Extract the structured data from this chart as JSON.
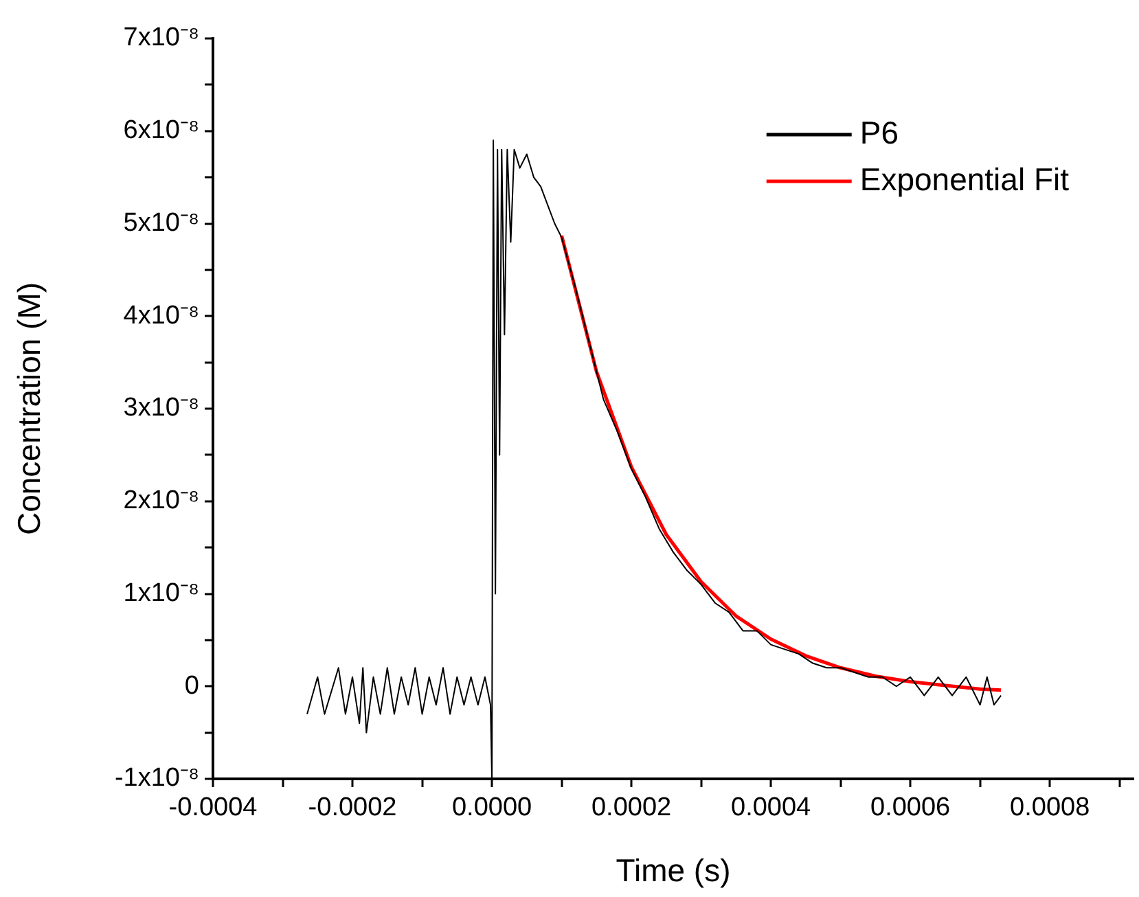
{
  "chart_data": {
    "type": "line",
    "xlabel": "Time (s)",
    "ylabel": "Concentration (M)",
    "xlim": [
      -0.0004,
      0.00092
    ],
    "ylim": [
      -1e-08,
      7e-08
    ],
    "xticks": [
      -0.0004,
      {
        "value": -0.0003,
        "label": null
      },
      -0.0002,
      {
        "value": -0.0001,
        "label": null
      },
      {
        "value": 0,
        "label": "0.0000"
      },
      {
        "value": 0.0001,
        "label": null
      },
      0.0002,
      {
        "value": 0.0003,
        "label": null
      },
      0.0004,
      {
        "value": 0.0005,
        "label": null
      },
      0.0006,
      {
        "value": 0.0007,
        "label": null
      },
      0.0008,
      {
        "value": 0.0009,
        "label": null
      }
    ],
    "yticks": [
      {
        "value": -1e-08,
        "label": "-1x10⁻⁸"
      },
      {
        "value": -5e-09,
        "label": null
      },
      0,
      {
        "value": 5e-09,
        "label": null
      },
      {
        "value": 1e-08,
        "label": "1x10⁻⁸"
      },
      {
        "value": 1.5e-08,
        "label": null
      },
      {
        "value": 2e-08,
        "label": "2x10⁻⁸"
      },
      {
        "value": 2.5e-08,
        "label": null
      },
      {
        "value": 3e-08,
        "label": "3x10⁻⁸"
      },
      {
        "value": 3.5e-08,
        "label": null
      },
      {
        "value": 4e-08,
        "label": "4x10⁻⁸"
      },
      {
        "value": 4.5e-08,
        "label": null
      },
      {
        "value": 5e-08,
        "label": "5x10⁻⁸"
      },
      {
        "value": 5.5e-08,
        "label": null
      },
      {
        "value": 6e-08,
        "label": "6x10⁻⁸"
      },
      {
        "value": 6.5e-08,
        "label": null
      },
      {
        "value": 7e-08,
        "label": "7x10⁻⁸"
      }
    ],
    "grid": false,
    "legend": "top right",
    "marker": "none",
    "line_style": "solid",
    "series": [
      {
        "name": "P6",
        "color": "#000000",
        "x": [
          -0.000265,
          -0.00025,
          -0.00024,
          -0.00022,
          -0.00021,
          -0.0002,
          -0.00019,
          -0.000185,
          -0.00018,
          -0.00017,
          -0.00016,
          -0.00015,
          -0.00014,
          -0.00013,
          -0.00012,
          -0.00011,
          -0.0001,
          -9e-05,
          -8e-05,
          -7e-05,
          -6e-05,
          -5e-05,
          -4e-05,
          -3e-05,
          -2e-05,
          -1e-05,
          -2e-06,
          0,
          2e-06,
          5e-06,
          8e-06,
          1.1e-05,
          1.4e-05,
          1.8e-05,
          2.2e-05,
          2.7e-05,
          3.2e-05,
          4e-05,
          5e-05,
          6e-05,
          7e-05,
          8e-05,
          9e-05,
          0.0001,
          0.00012,
          0.00014,
          0.00016,
          0.00018,
          0.0002,
          0.00022,
          0.00024,
          0.00026,
          0.00028,
          0.0003,
          0.00032,
          0.00034,
          0.00036,
          0.00038,
          0.0004,
          0.00042,
          0.00044,
          0.00046,
          0.00048,
          0.0005,
          0.00052,
          0.00054,
          0.00056,
          0.00058,
          0.0006,
          0.00062,
          0.00064,
          0.00066,
          0.00068,
          0.0007,
          0.00071,
          0.00072,
          0.00073
        ],
        "values": [
          -3e-09,
          1e-09,
          -3e-09,
          2e-09,
          -3e-09,
          1e-09,
          -4e-09,
          2e-09,
          -5e-09,
          1e-09,
          -3e-09,
          2e-09,
          -3e-09,
          1e-09,
          -2e-09,
          2e-09,
          -3e-09,
          1e-09,
          -2e-09,
          2e-09,
          -3e-09,
          1e-09,
          -2e-09,
          1e-09,
          -2e-09,
          1e-09,
          -2e-09,
          -1e-08,
          5.9e-08,
          1e-08,
          5.8e-08,
          2.5e-08,
          5.8e-08,
          3.8e-08,
          5.8e-08,
          4.8e-08,
          5.8e-08,
          5.6e-08,
          5.75e-08,
          5.5e-08,
          5.4e-08,
          5.2e-08,
          5e-08,
          4.85e-08,
          4.3e-08,
          3.7e-08,
          3.1e-08,
          2.75e-08,
          2.35e-08,
          2.05e-08,
          1.7e-08,
          1.45e-08,
          1.25e-08,
          1.1e-08,
          9e-09,
          8e-09,
          6e-09,
          6e-09,
          4.5e-09,
          4e-09,
          3.5e-09,
          2.5e-09,
          2e-09,
          2e-09,
          1.5e-09,
          1e-09,
          1e-09,
          0,
          1e-09,
          -1e-09,
          1e-09,
          -1e-09,
          1e-09,
          -2e-09,
          1e-09,
          -2e-09,
          -1e-09
        ]
      },
      {
        "name": "Exponential Fit",
        "color": "#ff0000",
        "x": [
          0.0001,
          0.00015,
          0.0002,
          0.00025,
          0.0003,
          0.00035,
          0.0004,
          0.00045,
          0.0005,
          0.00055,
          0.0006,
          0.00065,
          0.0007,
          0.00073
        ],
        "values": [
          4.87e-08,
          3.4e-08,
          2.37e-08,
          1.64e-08,
          1.13e-08,
          7.6e-09,
          5.1e-09,
          3.3e-09,
          2e-09,
          1.1e-09,
          5e-10,
          1e-10,
          -3e-10,
          -4e-10
        ]
      }
    ]
  }
}
